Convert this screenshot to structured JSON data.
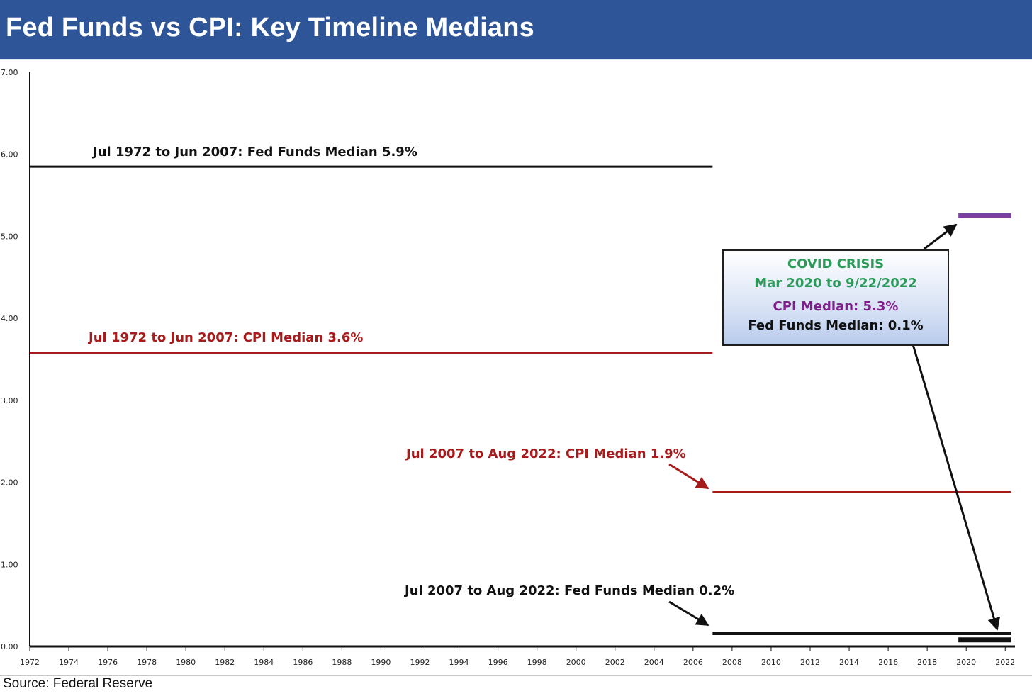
{
  "header": {
    "title": "Fed Funds vs CPI: Key Timeline Medians"
  },
  "source": "Source: Federal Reserve",
  "colors": {
    "fed_funds": "#111111",
    "cpi": "#a61c1c",
    "covid_cpi": "#7b3fa0",
    "header": "#2e5597",
    "covid_title": "#2e9a5a"
  },
  "chart_data": {
    "type": "line",
    "title": "Fed Funds vs CPI: Key Timeline Medians",
    "xlabel": "",
    "ylabel": "",
    "xlim": [
      1972,
      2022.5
    ],
    "ylim": [
      0,
      7
    ],
    "x_ticks": [
      "1972",
      "1974",
      "1976",
      "1978",
      "1980",
      "1982",
      "1984",
      "1986",
      "1988",
      "1990",
      "1992",
      "1994",
      "1996",
      "1998",
      "2000",
      "2002",
      "2004",
      "2006",
      "2008",
      "2010",
      "2012",
      "2014",
      "2016",
      "2018",
      "2020",
      "2022"
    ],
    "y_ticks": [
      "0.00",
      "1.00",
      "2.00",
      "3.00",
      "4.00",
      "5.00",
      "6.00",
      "7.00"
    ],
    "grid": false,
    "series": [
      {
        "id": "ff1",
        "color": "#111111",
        "x": [
          1972.0,
          2007.0
        ],
        "y": [
          5.85,
          5.85
        ],
        "width": 3
      },
      {
        "id": "cpi1",
        "color": "#a61c1c",
        "x": [
          1972.0,
          2007.0
        ],
        "y": [
          3.58,
          3.58
        ],
        "width": 3
      },
      {
        "id": "cpi2",
        "color": "#a61c1c",
        "x": [
          2007.0,
          2022.3
        ],
        "y": [
          1.88,
          1.88
        ],
        "width": 3
      },
      {
        "id": "ff2",
        "color": "#111111",
        "x": [
          2007.0,
          2022.3
        ],
        "y": [
          0.16,
          0.16
        ],
        "width": 5
      },
      {
        "id": "covid-cpi",
        "color": "#7b3fa0",
        "x": [
          2019.6,
          2022.3
        ],
        "y": [
          5.25,
          5.25
        ],
        "width": 7
      },
      {
        "id": "covid-ff",
        "color": "#111111",
        "x": [
          2019.6,
          2022.3
        ],
        "y": [
          0.08,
          0.08
        ],
        "width": 7
      }
    ],
    "annotations": [
      {
        "id": "ann-ff1",
        "text": "Jul 1972 to  Jun 2007: Fed Funds Median 5.9%",
        "color": "#111111"
      },
      {
        "id": "ann-cpi1",
        "text": "Jul 1972 to Jun 2007: CPI Median 3.6%",
        "color": "#a61c1c"
      },
      {
        "id": "ann-cpi2",
        "text": "Jul 2007 to Aug 2022: CPI Median 1.9%",
        "color": "#a61c1c"
      },
      {
        "id": "ann-ff2",
        "text": "Jul 2007 to Aug 2022: Fed Funds Median 0.2%",
        "color": "#111111"
      }
    ],
    "covid_box": {
      "title": "COVID CRISIS",
      "range": "Mar 2020 to 9/22/2022",
      "cpi": "CPI Median: 5.3%",
      "fed_funds": "Fed Funds Median: 0.1%"
    }
  }
}
